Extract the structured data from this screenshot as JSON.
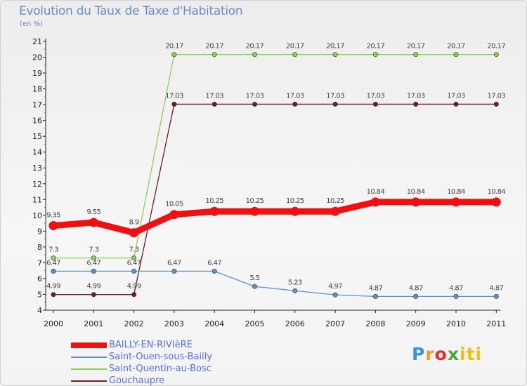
{
  "title": "Evolution du Taux de Taxe d'Habitation",
  "subtitle": "(en %)",
  "logo": {
    "parts": [
      "P",
      "r",
      "o",
      "x",
      "iti"
    ],
    "colors": [
      "#3a93d6",
      "#f0a020",
      "#e03030",
      "#49a83a",
      "#f0c010"
    ]
  },
  "chart_data": {
    "type": "line",
    "title": "Evolution du Taux de Taxe d'Habitation",
    "ylabel": "(en %)",
    "xlabel": "",
    "x": [
      "2000",
      "2001",
      "2002",
      "2003",
      "2004",
      "2005",
      "2006",
      "2007",
      "2008",
      "2009",
      "2010",
      "2011"
    ],
    "ylim": [
      4,
      21
    ],
    "yticks": [
      "4",
      "5",
      "6",
      "7",
      "8",
      "9",
      "10",
      "11",
      "12",
      "13",
      "14",
      "15",
      "16",
      "17",
      "18",
      "19",
      "20",
      "21"
    ],
    "grid": false,
    "legend_position": "bottom-left",
    "series": [
      {
        "name": "BAILLY-EN-RIVIèRE",
        "color": "#ee1111",
        "emphasis": true,
        "values": [
          9.35,
          9.55,
          8.9,
          10.05,
          10.25,
          10.25,
          10.25,
          10.25,
          10.84,
          10.84,
          10.84,
          10.84
        ],
        "labels": [
          "9.35",
          "9.55",
          "8.9",
          "10.05",
          "10.25",
          "10.25",
          "10.25",
          "10.25",
          "10.84",
          "10.84",
          "10.84",
          "10.84"
        ]
      },
      {
        "name": "Saint-Ouen-sous-Bailly",
        "color": "#5b95cf",
        "values": [
          6.47,
          6.47,
          6.47,
          6.47,
          6.47,
          5.5,
          5.23,
          4.97,
          4.87,
          4.87,
          4.87,
          4.87
        ],
        "labels": [
          "6.47",
          "6.47",
          "6.47",
          "6.47",
          "6.47",
          "5.5",
          "5.23",
          "4.97",
          "4.87",
          "4.87",
          "4.87",
          "4.87"
        ]
      },
      {
        "name": "Saint-Quentin-au-Bosc",
        "color": "#8ed04f",
        "values": [
          7.3,
          7.3,
          7.3,
          20.17,
          20.17,
          20.17,
          20.17,
          20.17,
          20.17,
          20.17,
          20.17,
          20.17
        ],
        "labels": [
          "7.3",
          "7.3",
          "7.3",
          "20.17",
          "20.17",
          "20.17",
          "20.17",
          "20.17",
          "20.17",
          "20.17",
          "20.17",
          "20.17"
        ]
      },
      {
        "name": "Gouchaupre",
        "color": "#6b1f25",
        "values": [
          4.99,
          4.99,
          4.99,
          17.03,
          17.03,
          17.03,
          17.03,
          17.03,
          17.03,
          17.03,
          17.03,
          17.03
        ],
        "labels": [
          "4.99",
          "4.99",
          "4.99",
          "17.03",
          "17.03",
          "17.03",
          "17.03",
          "17.03",
          "17.03",
          "17.03",
          "17.03",
          "17.03"
        ]
      }
    ]
  }
}
